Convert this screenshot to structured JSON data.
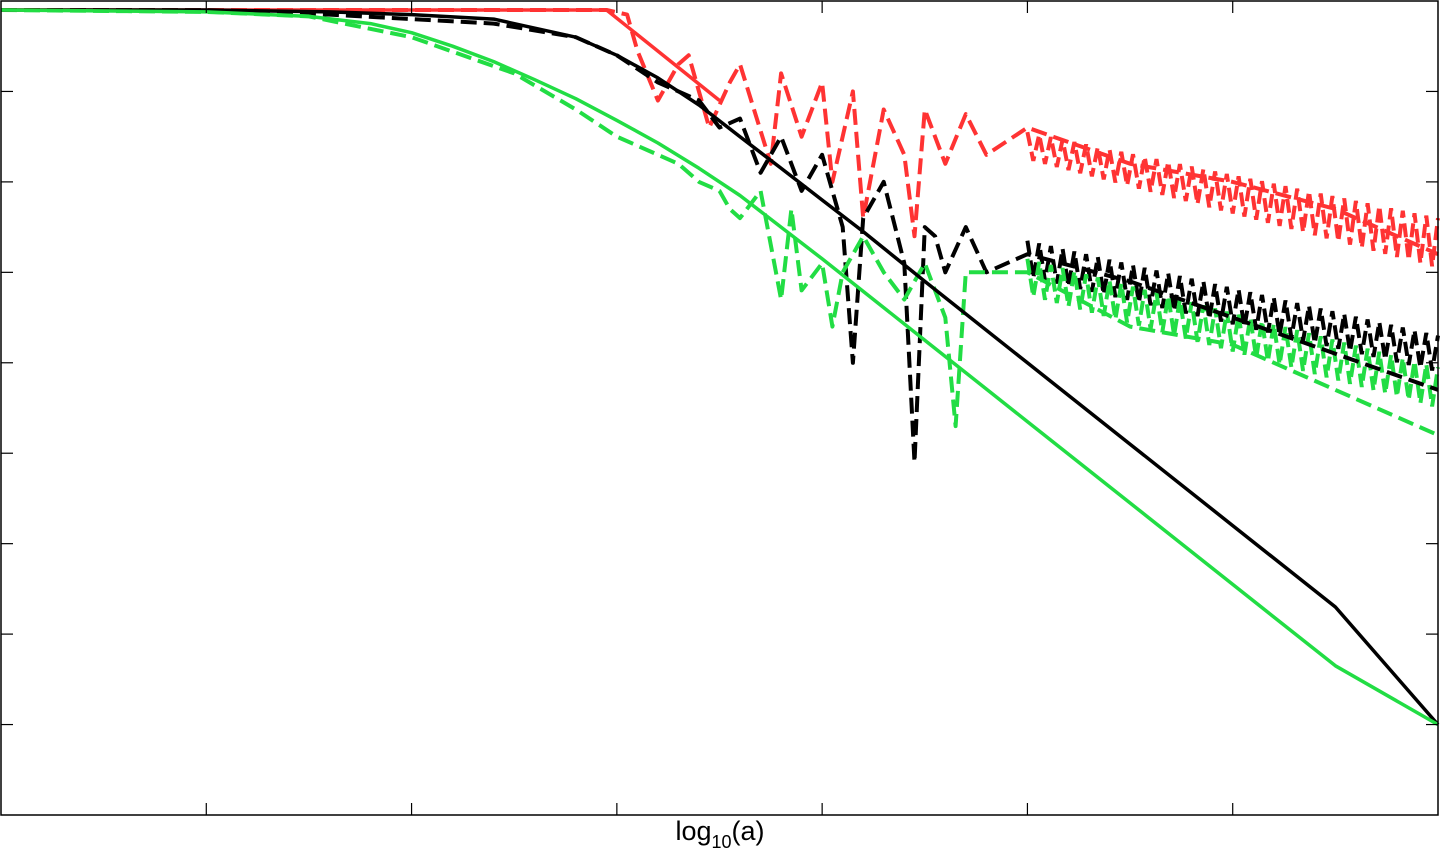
{
  "chart_data": {
    "type": "line",
    "xlabel": "log",
    "xlabel_sub": "10",
    "xlabel_tail": "(a)",
    "ylabel": "",
    "title": "",
    "xlim": [
      0,
      7
    ],
    "ylim": [
      0,
      9
    ],
    "x_ticks": [
      1,
      2,
      3,
      4,
      5,
      6
    ],
    "y_ticks": [
      1,
      2,
      3,
      4,
      5,
      6,
      7,
      8
    ],
    "grid": false,
    "colors": {
      "red": "#ff3333",
      "black": "#000000",
      "green": "#22dd44"
    },
    "series": [
      {
        "color": "red",
        "style": "solid",
        "x": [
          0.0,
          2.95,
          3.5
        ],
        "y": [
          8.9,
          8.9,
          7.9
        ]
      },
      {
        "color": "black",
        "style": "solid",
        "x": [
          0.0,
          1.0,
          1.6,
          2.0,
          2.4,
          2.8,
          3.0,
          3.2,
          3.4,
          3.6,
          3.8,
          4.0,
          4.2,
          4.5,
          5.0,
          5.5,
          6.0,
          6.5,
          7.0
        ],
        "y": [
          8.9,
          8.9,
          8.88,
          8.85,
          8.8,
          8.6,
          8.4,
          8.15,
          7.85,
          7.5,
          7.15,
          6.8,
          6.45,
          5.9,
          5.0,
          4.1,
          3.2,
          2.3,
          1.0
        ]
      },
      {
        "color": "green",
        "style": "solid",
        "x": [
          0.0,
          1.0,
          1.5,
          1.8,
          2.0,
          2.2,
          2.4,
          2.6,
          2.8,
          3.0,
          3.2,
          3.4,
          3.6,
          4.0,
          4.5,
          5.0,
          5.5,
          6.0,
          6.5,
          7.0
        ],
        "y": [
          8.9,
          8.88,
          8.83,
          8.75,
          8.65,
          8.5,
          8.33,
          8.13,
          7.92,
          7.68,
          7.43,
          7.15,
          6.85,
          6.15,
          5.25,
          4.35,
          3.45,
          2.55,
          1.65,
          1.0
        ]
      },
      {
        "color": "red",
        "style": "dashed",
        "x": [
          0.0,
          2.95,
          3.05,
          3.1,
          3.2,
          3.3,
          3.35,
          3.45,
          3.55,
          3.6,
          3.75,
          3.8,
          3.9,
          4.0,
          4.05,
          4.15,
          4.2,
          4.3,
          4.4,
          4.45,
          4.5,
          4.6,
          4.7,
          4.8,
          5.0,
          5.5,
          6.0,
          6.5,
          7.0
        ],
        "y": [
          8.9,
          8.9,
          8.85,
          8.45,
          7.9,
          8.3,
          8.4,
          7.6,
          8.1,
          8.3,
          7.2,
          8.2,
          7.5,
          8.1,
          7.0,
          8.0,
          6.6,
          7.8,
          7.3,
          6.4,
          7.8,
          7.2,
          7.75,
          7.3,
          7.6,
          7.2,
          7.0,
          6.7,
          6.2
        ]
      },
      {
        "color": "black",
        "style": "dashed",
        "x": [
          0.0,
          1.0,
          1.6,
          2.0,
          2.4,
          2.8,
          3.0,
          3.2,
          3.4,
          3.5,
          3.6,
          3.7,
          3.8,
          3.9,
          4.0,
          4.1,
          4.15,
          4.2,
          4.3,
          4.4,
          4.45,
          4.5,
          4.55,
          4.6,
          4.7,
          4.8,
          5.0,
          5.5,
          6.0,
          6.5,
          7.0
        ],
        "y": [
          8.9,
          8.9,
          8.85,
          8.8,
          8.75,
          8.6,
          8.4,
          8.1,
          7.9,
          7.6,
          7.7,
          7.1,
          7.5,
          6.9,
          7.3,
          6.5,
          5.0,
          6.6,
          7.0,
          6.1,
          3.9,
          6.5,
          6.4,
          6.0,
          6.5,
          6.0,
          6.2,
          5.9,
          5.5,
          5.1,
          4.7
        ]
      },
      {
        "color": "green",
        "style": "dashed",
        "x": [
          0.0,
          1.0,
          1.5,
          2.0,
          2.5,
          2.8,
          3.0,
          3.1,
          3.2,
          3.3,
          3.4,
          3.5,
          3.55,
          3.6,
          3.7,
          3.8,
          3.85,
          3.9,
          4.0,
          4.05,
          4.1,
          4.2,
          4.3,
          4.4,
          4.5,
          4.6,
          4.65,
          4.7,
          4.8,
          5.0,
          5.5,
          6.0,
          6.5,
          7.0
        ],
        "y": [
          8.9,
          8.88,
          8.83,
          8.6,
          8.2,
          7.8,
          7.5,
          7.4,
          7.3,
          7.2,
          7.0,
          6.9,
          6.7,
          6.6,
          6.9,
          5.7,
          6.7,
          5.8,
          6.1,
          5.4,
          6.0,
          6.4,
          6.0,
          5.7,
          6.1,
          5.5,
          4.3,
          6.0,
          6.0,
          6.0,
          5.4,
          5.2,
          4.7,
          4.2
        ]
      }
    ],
    "bands": [
      {
        "color": "red",
        "x": [
          5.0,
          7.0
        ],
        "y_top": [
          7.55,
          6.6
        ],
        "y_bottom": [
          7.25,
          6.05
        ]
      },
      {
        "color": "black",
        "x": [
          5.0,
          7.0
        ],
        "y_top": [
          6.35,
          5.3
        ],
        "y_bottom": [
          5.95,
          4.9
        ]
      },
      {
        "color": "green",
        "x": [
          5.0,
          7.0
        ],
        "y_top": [
          6.15,
          4.95
        ],
        "y_bottom": [
          5.75,
          4.5
        ]
      }
    ]
  }
}
